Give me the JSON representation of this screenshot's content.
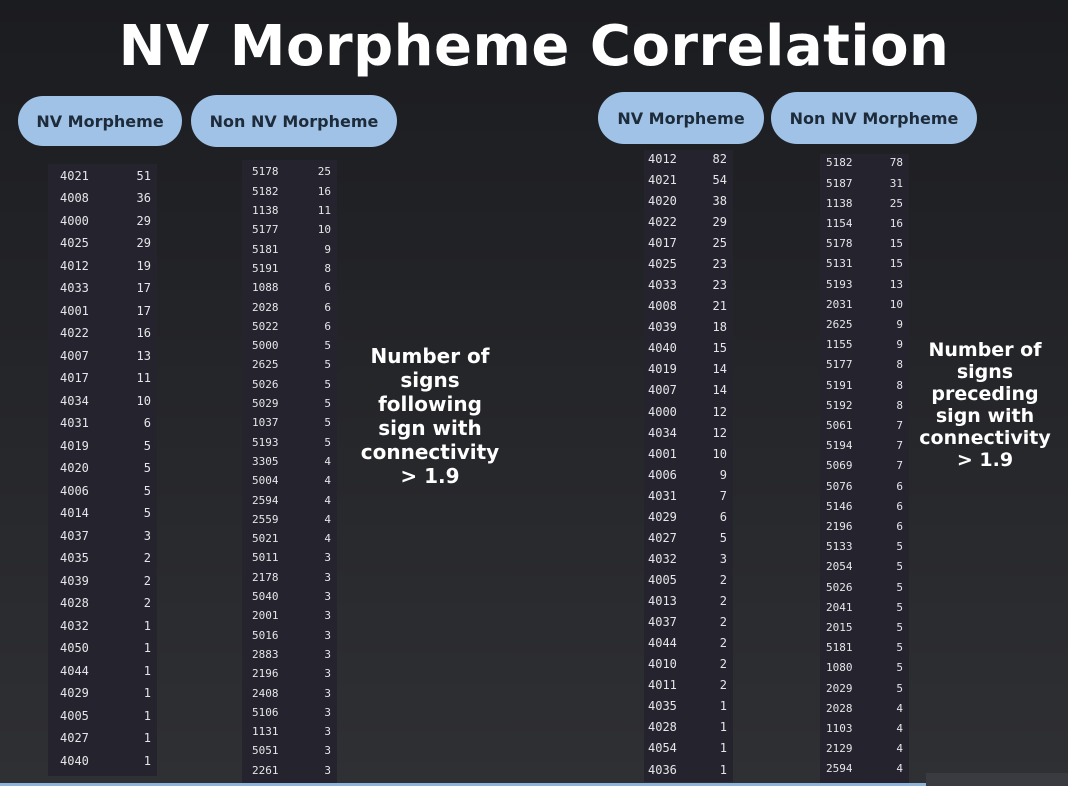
{
  "title": "NV Morpheme Correlation",
  "pills": {
    "left_nv": "NV Morpheme",
    "left_non_nv": "Non NV Morpheme",
    "right_nv": "NV Morpheme",
    "right_non_nv": "Non NV Morpheme"
  },
  "notes": {
    "left": "Number of\nsigns\nfollowing\nsign with\nconnectivity\n> 1.9",
    "right": "Number of\nsigns\npreceding\nsign with\nconnectivity\n> 1.9"
  },
  "tables": {
    "left_nv": [
      [
        "4021",
        "51"
      ],
      [
        "4008",
        "36"
      ],
      [
        "4000",
        "29"
      ],
      [
        "4025",
        "29"
      ],
      [
        "4012",
        "19"
      ],
      [
        "4033",
        "17"
      ],
      [
        "4001",
        "17"
      ],
      [
        "4022",
        "16"
      ],
      [
        "4007",
        "13"
      ],
      [
        "4017",
        "11"
      ],
      [
        "4034",
        "10"
      ],
      [
        "4031",
        "6"
      ],
      [
        "4019",
        "5"
      ],
      [
        "4020",
        "5"
      ],
      [
        "4006",
        "5"
      ],
      [
        "4014",
        "5"
      ],
      [
        "4037",
        "3"
      ],
      [
        "4035",
        "2"
      ],
      [
        "4039",
        "2"
      ],
      [
        "4028",
        "2"
      ],
      [
        "4032",
        "1"
      ],
      [
        "4050",
        "1"
      ],
      [
        "4044",
        "1"
      ],
      [
        "4029",
        "1"
      ],
      [
        "4005",
        "1"
      ],
      [
        "4027",
        "1"
      ],
      [
        "4040",
        "1"
      ]
    ],
    "left_non_nv": [
      [
        "5178",
        "25"
      ],
      [
        "5182",
        "16"
      ],
      [
        "1138",
        "11"
      ],
      [
        "5177",
        "10"
      ],
      [
        "5181",
        "9"
      ],
      [
        "5191",
        "8"
      ],
      [
        "1088",
        "6"
      ],
      [
        "2028",
        "6"
      ],
      [
        "5022",
        "6"
      ],
      [
        "5000",
        "5"
      ],
      [
        "2625",
        "5"
      ],
      [
        "5026",
        "5"
      ],
      [
        "5029",
        "5"
      ],
      [
        "1037",
        "5"
      ],
      [
        "5193",
        "5"
      ],
      [
        "3305",
        "4"
      ],
      [
        "5004",
        "4"
      ],
      [
        "2594",
        "4"
      ],
      [
        "2559",
        "4"
      ],
      [
        "5021",
        "4"
      ],
      [
        "5011",
        "3"
      ],
      [
        "2178",
        "3"
      ],
      [
        "5040",
        "3"
      ],
      [
        "2001",
        "3"
      ],
      [
        "5016",
        "3"
      ],
      [
        "2883",
        "3"
      ],
      [
        "2196",
        "3"
      ],
      [
        "2408",
        "3"
      ],
      [
        "5106",
        "3"
      ],
      [
        "1131",
        "3"
      ],
      [
        "5051",
        "3"
      ],
      [
        "2261",
        "3"
      ]
    ],
    "right_nv": [
      [
        "4012",
        "82"
      ],
      [
        "4021",
        "54"
      ],
      [
        "4020",
        "38"
      ],
      [
        "4022",
        "29"
      ],
      [
        "4017",
        "25"
      ],
      [
        "4025",
        "23"
      ],
      [
        "4033",
        "23"
      ],
      [
        "4008",
        "21"
      ],
      [
        "4039",
        "18"
      ],
      [
        "4040",
        "15"
      ],
      [
        "4019",
        "14"
      ],
      [
        "4007",
        "14"
      ],
      [
        "4000",
        "12"
      ],
      [
        "4034",
        "12"
      ],
      [
        "4001",
        "10"
      ],
      [
        "4006",
        "9"
      ],
      [
        "4031",
        "7"
      ],
      [
        "4029",
        "6"
      ],
      [
        "4027",
        "5"
      ],
      [
        "4032",
        "3"
      ],
      [
        "4005",
        "2"
      ],
      [
        "4013",
        "2"
      ],
      [
        "4037",
        "2"
      ],
      [
        "4044",
        "2"
      ],
      [
        "4010",
        "2"
      ],
      [
        "4011",
        "2"
      ],
      [
        "4035",
        "1"
      ],
      [
        "4028",
        "1"
      ],
      [
        "4054",
        "1"
      ],
      [
        "4036",
        "1"
      ]
    ],
    "right_non_nv": [
      [
        "5182",
        "78"
      ],
      [
        "5187",
        "31"
      ],
      [
        "1138",
        "25"
      ],
      [
        "1154",
        "16"
      ],
      [
        "5178",
        "15"
      ],
      [
        "5131",
        "15"
      ],
      [
        "5193",
        "13"
      ],
      [
        "2031",
        "10"
      ],
      [
        "2625",
        "9"
      ],
      [
        "1155",
        "9"
      ],
      [
        "5177",
        "8"
      ],
      [
        "5191",
        "8"
      ],
      [
        "5192",
        "8"
      ],
      [
        "5061",
        "7"
      ],
      [
        "5194",
        "7"
      ],
      [
        "5069",
        "7"
      ],
      [
        "5076",
        "6"
      ],
      [
        "5146",
        "6"
      ],
      [
        "2196",
        "6"
      ],
      [
        "5133",
        "5"
      ],
      [
        "2054",
        "5"
      ],
      [
        "5026",
        "5"
      ],
      [
        "2041",
        "5"
      ],
      [
        "2015",
        "5"
      ],
      [
        "5181",
        "5"
      ],
      [
        "1080",
        "5"
      ],
      [
        "2029",
        "5"
      ],
      [
        "2028",
        "4"
      ],
      [
        "1103",
        "4"
      ],
      [
        "2129",
        "4"
      ],
      [
        "2594",
        "4"
      ]
    ]
  }
}
